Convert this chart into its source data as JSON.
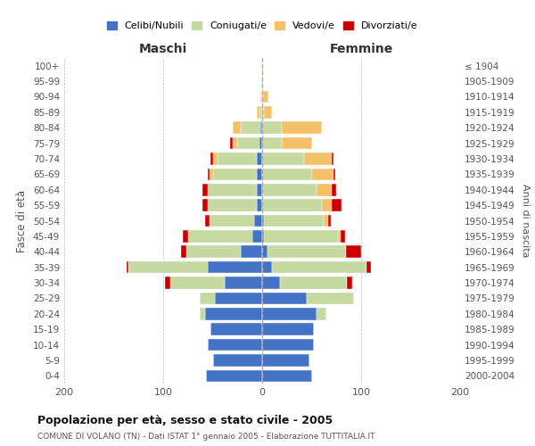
{
  "age_groups": [
    "0-4",
    "5-9",
    "10-14",
    "15-19",
    "20-24",
    "25-29",
    "30-34",
    "35-39",
    "40-44",
    "45-49",
    "50-54",
    "55-59",
    "60-64",
    "65-69",
    "70-74",
    "75-79",
    "80-84",
    "85-89",
    "90-94",
    "95-99",
    "100+"
  ],
  "birth_years": [
    "2000-2004",
    "1995-1999",
    "1990-1994",
    "1985-1989",
    "1980-1984",
    "1975-1979",
    "1970-1974",
    "1965-1969",
    "1960-1964",
    "1955-1959",
    "1950-1954",
    "1945-1949",
    "1940-1944",
    "1935-1939",
    "1930-1934",
    "1925-1929",
    "1920-1924",
    "1915-1919",
    "1910-1914",
    "1905-1909",
    "≤ 1904"
  ],
  "males": {
    "celibe": [
      57,
      50,
      55,
      52,
      58,
      48,
      38,
      55,
      22,
      10,
      8,
      5,
      5,
      5,
      5,
      3,
      2,
      0,
      0,
      0,
      0
    ],
    "coniugato": [
      0,
      0,
      0,
      0,
      5,
      15,
      55,
      80,
      55,
      65,
      45,
      50,
      50,
      45,
      40,
      22,
      20,
      3,
      1,
      1,
      0
    ],
    "vedovo": [
      0,
      0,
      0,
      0,
      0,
      0,
      0,
      0,
      0,
      0,
      0,
      0,
      0,
      3,
      5,
      5,
      8,
      2,
      1,
      0,
      0
    ],
    "divorziato": [
      0,
      0,
      0,
      0,
      0,
      0,
      5,
      2,
      5,
      5,
      5,
      5,
      5,
      2,
      2,
      2,
      0,
      0,
      0,
      0,
      0
    ]
  },
  "females": {
    "nubile": [
      50,
      48,
      52,
      52,
      55,
      45,
      18,
      10,
      5,
      2,
      2,
      0,
      0,
      0,
      0,
      0,
      0,
      0,
      0,
      0,
      0
    ],
    "coniugata": [
      0,
      0,
      0,
      0,
      10,
      48,
      68,
      95,
      80,
      75,
      60,
      60,
      55,
      50,
      42,
      20,
      20,
      2,
      1,
      0,
      0
    ],
    "vedova": [
      0,
      0,
      0,
      0,
      0,
      0,
      0,
      0,
      0,
      2,
      5,
      10,
      15,
      22,
      28,
      30,
      40,
      8,
      5,
      1,
      1
    ],
    "divorziata": [
      0,
      0,
      0,
      0,
      0,
      0,
      5,
      5,
      15,
      5,
      2,
      10,
      5,
      2,
      2,
      0,
      0,
      0,
      0,
      0,
      0
    ]
  },
  "colors": {
    "celibe": "#4472c4",
    "coniugato": "#c5d9a0",
    "vedovo": "#f5c06a",
    "divorziato": "#cc0000"
  },
  "title": "Popolazione per età, sesso e stato civile - 2005",
  "subtitle": "COMUNE DI VOLANO (TN) - Dati ISTAT 1° gennaio 2005 - Elaborazione TUTTITALIA.IT",
  "xlabel_left": "Maschi",
  "xlabel_right": "Femmine",
  "ylabel_left": "Fasce di età",
  "ylabel_right": "Anni di nascita",
  "xlim": 200,
  "legend_labels": [
    "Celibi/Nubili",
    "Coniugati/e",
    "Vedovi/e",
    "Divorziati/e"
  ],
  "background_color": "#ffffff",
  "grid_color": "#bbbbbb"
}
